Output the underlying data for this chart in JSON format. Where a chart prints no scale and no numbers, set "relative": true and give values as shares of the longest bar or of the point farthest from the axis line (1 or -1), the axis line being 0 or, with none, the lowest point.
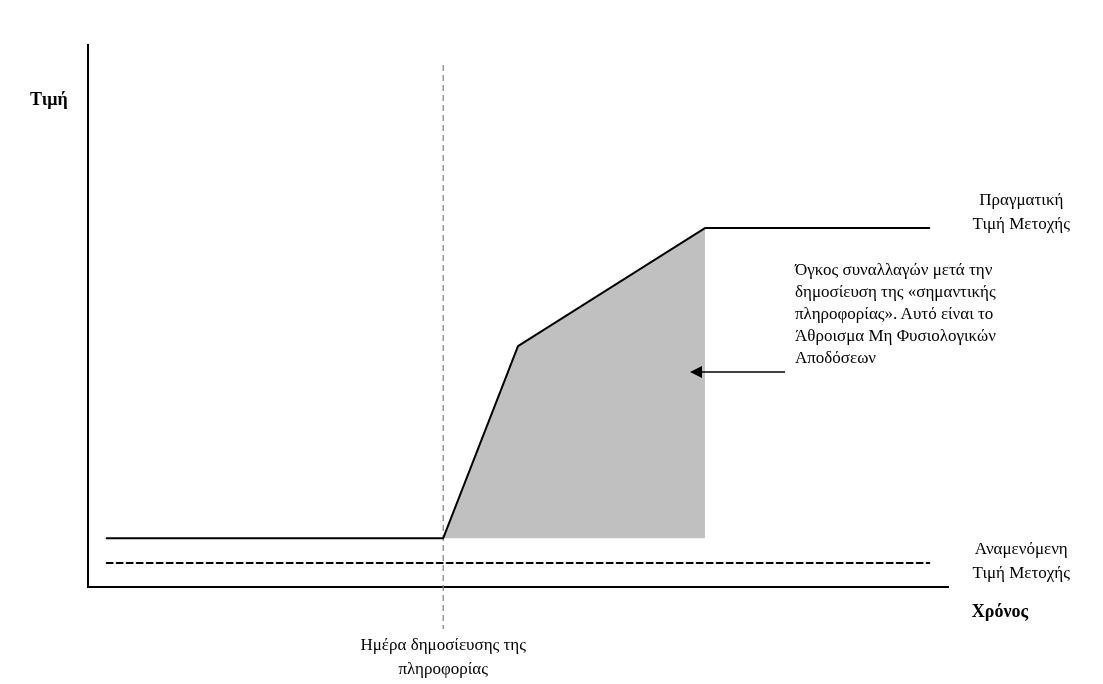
{
  "chart_data": {
    "type": "line",
    "relative": true,
    "xlabel": "Χρόνος",
    "tick_labels": false,
    "marker": "none",
    "categories": [
      null,
      null,
      null,
      null,
      null,
      null,
      null,
      null,
      null,
      null,
      null,
      null,
      null,
      null,
      null,
      null,
      null,
      null,
      null,
      null,
      null,
      null,
      null
    ],
    "series": [
      {
        "name": "Πραγματική Τιμή Μετοχής",
        "color": "#000000",
        "line_style": "solid",
        "values": [
          0.136,
          null,
          null,
          null,
          null,
          null,
          null,
          null,
          null,
          0.136,
          null,
          0.671,
          null,
          null,
          null,
          null,
          1,
          null,
          null,
          null,
          null,
          null,
          1
        ],
        "lower": [
          null,
          null,
          null,
          null,
          null,
          null,
          null,
          null,
          null,
          0.136,
          null,
          0.136,
          null,
          null,
          null,
          null,
          0.136,
          null,
          null,
          null,
          null,
          null,
          null
        ],
        "upper": [
          null,
          null,
          null,
          null,
          null,
          null,
          null,
          null,
          null,
          0.136,
          null,
          0.671,
          null,
          null,
          null,
          null,
          1,
          null,
          null,
          null,
          null,
          null,
          null
        ]
      },
      {
        "name": "Αναμενόμενη Τιμή Μετοχής",
        "color": "#000000",
        "line_style": "dashed",
        "values": [
          0.067,
          0.067,
          0.067,
          0.067,
          0.067,
          0.067,
          0.067,
          0.067,
          0.067,
          0.067,
          0.067,
          0.067,
          0.067,
          0.067,
          0.067,
          0.067,
          0.067,
          0.067,
          0.067,
          0.067,
          0.067,
          0.067,
          0.067
        ]
      }
    ],
    "ref_lines": [
      {
        "axis": "x",
        "label": "Ημέρα δημοσίευσης της πληροφορίας",
        "color": "#808080",
        "line_style": "dashed"
      }
    ],
    "annotations": [
      "Όγκος συναλλαγών μετά την δημοσίευση της «σημαντικής πληροφορίας». Αυτό είναι το Άθροισμα Μη Φυσιολογικών Αποδόσεων",
      "Τιμή"
    ]
  }
}
